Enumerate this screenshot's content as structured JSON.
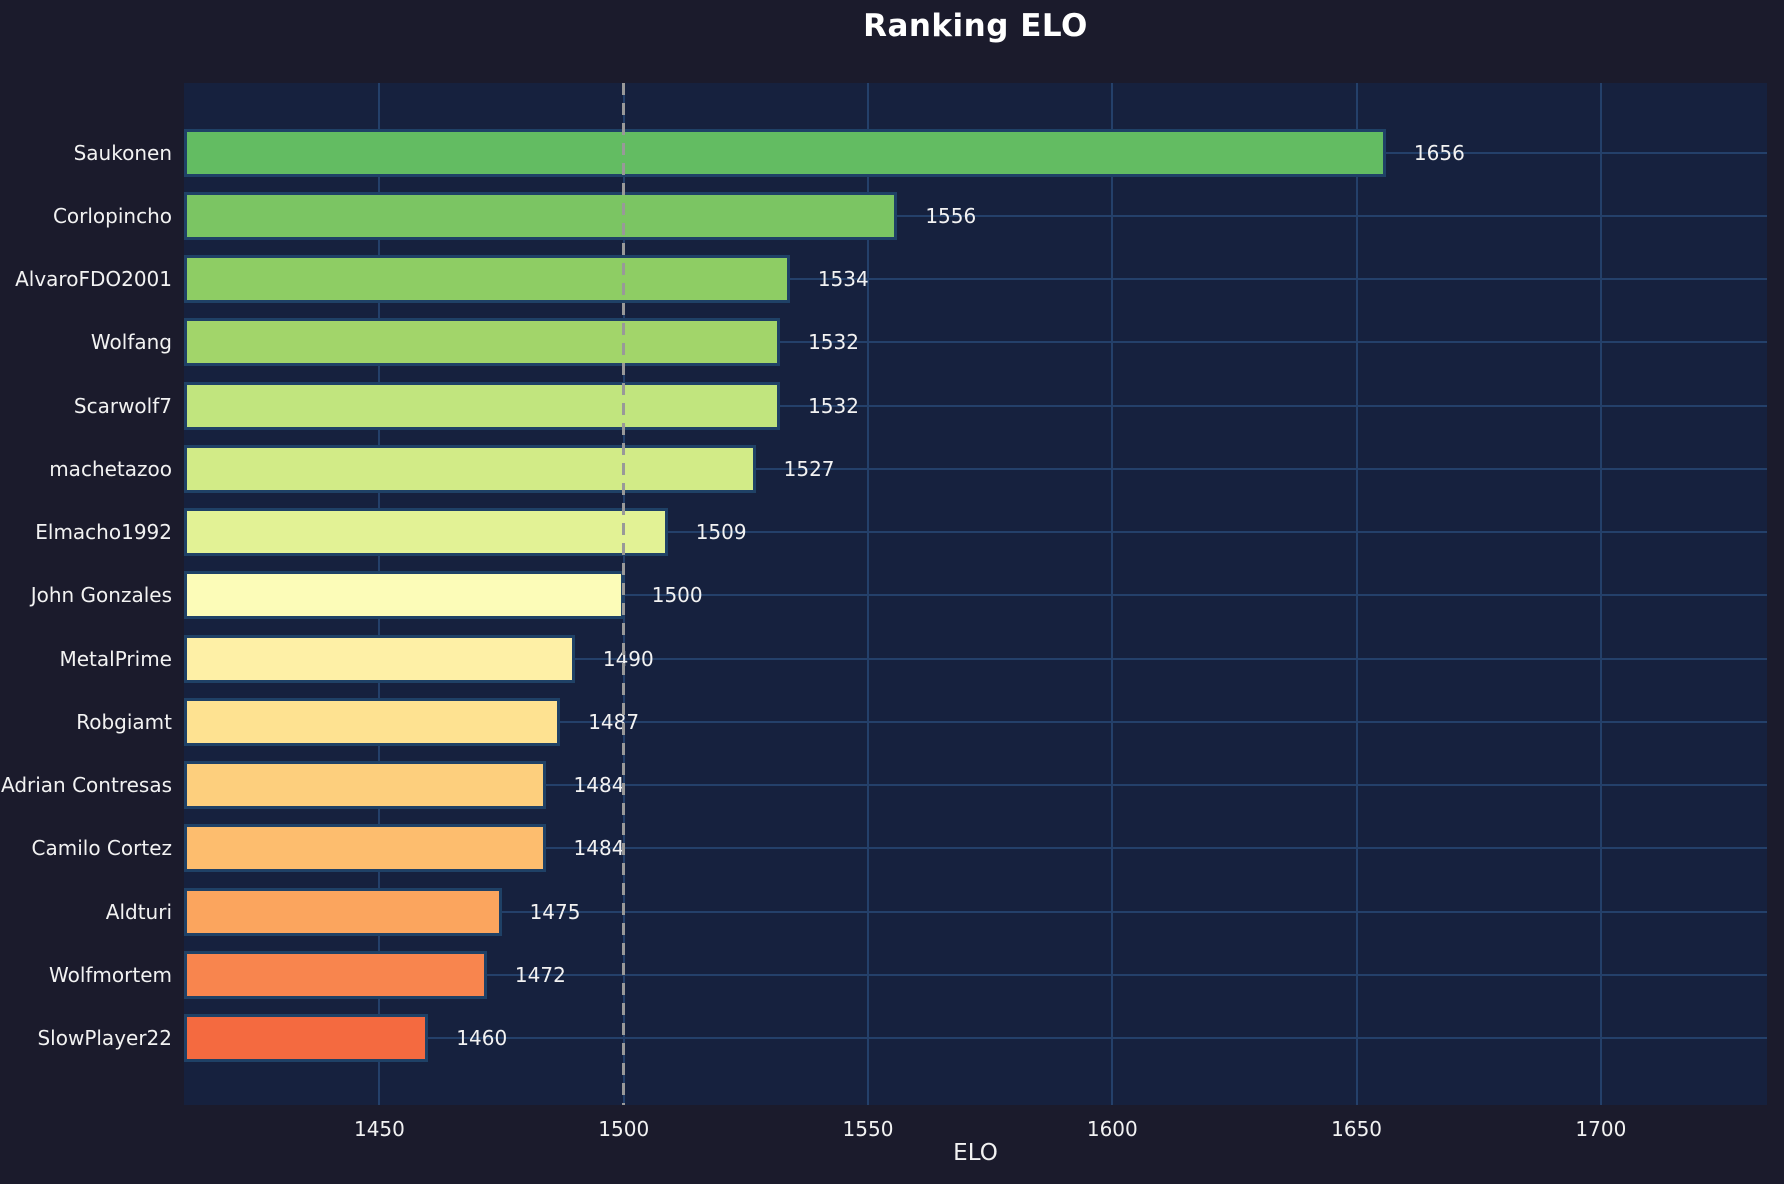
{
  "chart_data": {
    "type": "bar",
    "orientation": "horizontal",
    "title": "Ranking ELO",
    "xlabel": "ELO",
    "ylabel": "",
    "categories": [
      "Saukonen",
      "Corlopincho",
      "AlvaroFDO2001",
      "Wolfang",
      "Scarwolf7",
      "machetazoo",
      "Elmacho1992",
      "John Gonzales",
      "MetalPrime",
      "Robgiamt",
      "Adrian Contresas",
      "Camilo Cortez",
      "Aldturi",
      "Wolfmortem",
      "SlowPlayer22"
    ],
    "values": [
      1656,
      1556,
      1534,
      1532,
      1532,
      1527,
      1509,
      1500,
      1490,
      1487,
      1484,
      1484,
      1475,
      1472,
      1460
    ],
    "value_labels": [
      "1656",
      "1556",
      "1534",
      "1532",
      "1532",
      "1527",
      "1509",
      "1500",
      "1490",
      "1487",
      "1484",
      "1484",
      "1475",
      "1472",
      "1460"
    ],
    "bar_colors": [
      "#63bc62",
      "#7bc563",
      "#8ecd64",
      "#a2d56a",
      "#c1e57e",
      "#d2eb87",
      "#e2f295",
      "#fcfcb8",
      "#fef0a6",
      "#fee291",
      "#fdcf7d",
      "#fdbd6e",
      "#fba55e",
      "#f8854e",
      "#f46a40"
    ],
    "x_ticks": [
      "1450",
      "1500",
      "1550",
      "1600",
      "1650",
      "1700"
    ],
    "x_tick_values": [
      1450,
      1500,
      1550,
      1600,
      1650,
      1700
    ],
    "xlim": [
      1410,
      1734
    ],
    "grid": true,
    "legend": false,
    "reference_line": {
      "x": 1500,
      "style": "dashed",
      "color": "#999999"
    },
    "style": {
      "figure_bg": "#1b1b2c",
      "axes_bg": "#16213e",
      "grid_color": "#24406a",
      "bar_edge_color": "#1f4166",
      "text_color": "#f2f2f2",
      "title_color": "#ffffff",
      "ref_line_color": "#999999"
    }
  }
}
